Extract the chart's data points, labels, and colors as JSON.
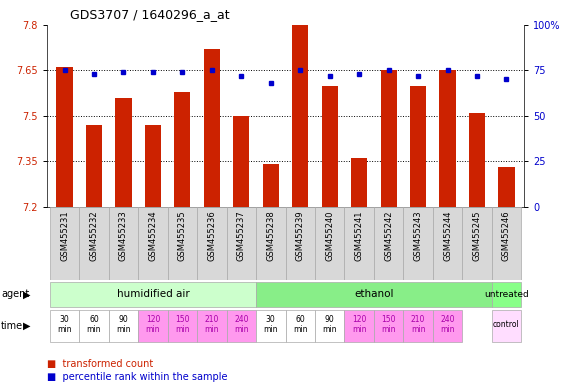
{
  "title": "GDS3707 / 1640296_a_at",
  "samples": [
    "GSM455231",
    "GSM455232",
    "GSM455233",
    "GSM455234",
    "GSM455235",
    "GSM455236",
    "GSM455237",
    "GSM455238",
    "GSM455239",
    "GSM455240",
    "GSM455241",
    "GSM455242",
    "GSM455243",
    "GSM455244",
    "GSM455245",
    "GSM455246"
  ],
  "bar_values": [
    7.66,
    7.47,
    7.56,
    7.47,
    7.58,
    7.72,
    7.5,
    7.34,
    7.8,
    7.6,
    7.36,
    7.65,
    7.6,
    7.65,
    7.51,
    7.33
  ],
  "dot_values": [
    75,
    73,
    74,
    74,
    74,
    75,
    72,
    68,
    75,
    72,
    73,
    75,
    72,
    75,
    72,
    70
  ],
  "ylim_left": [
    7.2,
    7.8
  ],
  "ylim_right": [
    0,
    100
  ],
  "yticks_left": [
    7.2,
    7.35,
    7.5,
    7.65,
    7.8
  ],
  "yticks_right": [
    0,
    25,
    50,
    75,
    100
  ],
  "ytick_labels_left": [
    "7.2",
    "7.35",
    "7.5",
    "7.65",
    "7.8"
  ],
  "ytick_labels_right": [
    "0",
    "25",
    "50",
    "75",
    "100%"
  ],
  "gridlines": [
    7.35,
    7.5,
    7.65
  ],
  "bar_color": "#cc2200",
  "dot_color": "#0000cc",
  "bar_bottom": 7.2,
  "humidified_color": "#ccffcc",
  "ethanol_color": "#88ee88",
  "untreated_color": "#88ff88",
  "white_bg": "#ffffff",
  "pink_bg": "#ff99ee",
  "lightpink_bg": "#ffddff",
  "sample_bg": "#d8d8d8",
  "legend_bar_label": "transformed count",
  "legend_dot_label": "percentile rank within the sample"
}
